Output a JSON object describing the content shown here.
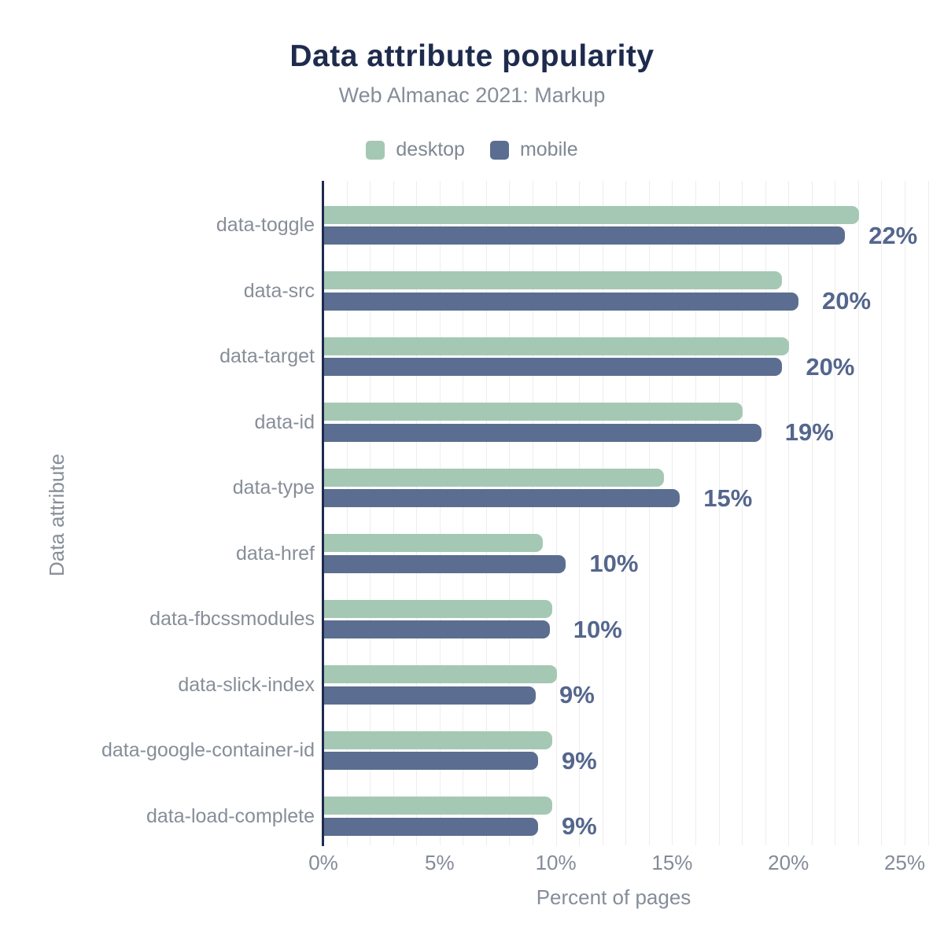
{
  "chart_data": {
    "type": "bar",
    "orientation": "horizontal",
    "title": "Data attribute popularity",
    "subtitle": "Web Almanac 2021: Markup",
    "xlabel": "Percent of pages",
    "ylabel": "Data attribute",
    "xlim": [
      0,
      26
    ],
    "grid": true,
    "grid_interval_pct": 1,
    "legend_position": "top",
    "x_tick_values": [
      0,
      5,
      10,
      15,
      20,
      25
    ],
    "x_tick_labels": [
      "0%",
      "5%",
      "10%",
      "15%",
      "20%",
      "25%"
    ],
    "categories": [
      "data-toggle",
      "data-src",
      "data-target",
      "data-id",
      "data-type",
      "data-href",
      "data-fbcssmodules",
      "data-slick-index",
      "data-google-container-id",
      "data-load-complete"
    ],
    "series": [
      {
        "name": "desktop",
        "color": "#a5c8b4",
        "values": [
          23.0,
          19.7,
          20.0,
          18.0,
          14.6,
          9.4,
          9.8,
          10.0,
          9.8,
          9.8
        ]
      },
      {
        "name": "mobile",
        "color": "#5b6e91",
        "values": [
          22.4,
          20.4,
          19.7,
          18.8,
          15.3,
          10.4,
          9.7,
          9.1,
          9.2,
          9.2
        ]
      }
    ],
    "value_labels": [
      "22%",
      "20%",
      "20%",
      "19%",
      "15%",
      "10%",
      "10%",
      "9%",
      "9%",
      "9%"
    ]
  },
  "colors": {
    "title": "#1e2b4d",
    "axis_line": "#1e2b4d",
    "gridline": "#ededed",
    "value_label": "#54668d",
    "muted_text": "#858d99",
    "desktop": "#a5c8b4",
    "mobile": "#5b6e91"
  }
}
